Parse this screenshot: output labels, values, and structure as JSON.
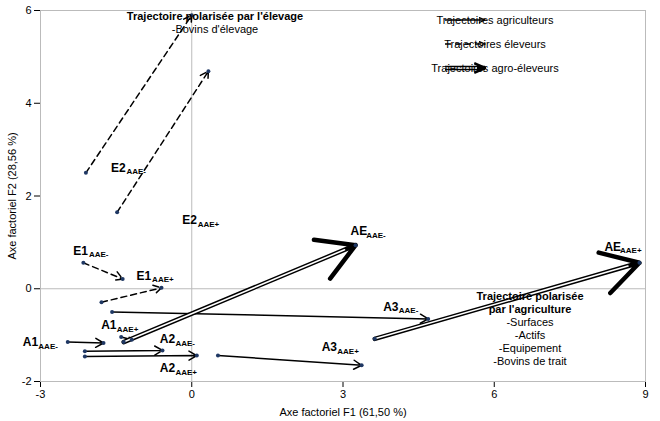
{
  "chart_data": {
    "type": "arrow",
    "x_label": "Axe factoriel F1 (61,50 %)",
    "y_label": "Axe factoriel F2 (28,56 %)",
    "xlim": [
      -3,
      9
    ],
    "ylim": [
      -2,
      6
    ],
    "xticks": [
      -3,
      0,
      3,
      6,
      9
    ],
    "yticks": [
      -2,
      0,
      2,
      4,
      6
    ],
    "grid": false,
    "marker": "dot",
    "legend": "top-right",
    "series": [
      {
        "name": "Trajectoires agriculteurs",
        "color": "#000000",
        "line_style": "solid",
        "values": [
          {
            "name": "A1",
            "subscript": "AAE-",
            "x": [
              -2.46,
              -1.75
            ],
            "y": [
              -1.15,
              -1.17
            ]
          },
          {
            "name": "A1",
            "subscript": "AAE+",
            "x": [
              -1.4,
              -1.19
            ],
            "y": [
              -1.04,
              -1.1
            ]
          },
          {
            "name": "A2",
            "subscript": "AAE-",
            "x": [
              -2.12,
              -0.58
            ],
            "y": [
              -1.35,
              -1.33
            ]
          },
          {
            "name": "A2",
            "subscript": "AAE+",
            "x": [
              -2.12,
              0.1
            ],
            "y": [
              -1.46,
              -1.44
            ]
          },
          {
            "name": "A3",
            "subscript": "AAE-",
            "x": [
              -1.58,
              4.69
            ],
            "y": [
              -0.5,
              -0.65
            ]
          },
          {
            "name": "A3",
            "subscript": "AAE+",
            "x": [
              0.52,
              3.37
            ],
            "y": [
              -1.44,
              -1.65
            ]
          }
        ]
      },
      {
        "name": "Trajectoires éleveurs",
        "color": "#000000",
        "line_style": "dashed",
        "values": [
          {
            "name": "E1",
            "subscript": "AAE-",
            "x": [
              -2.15,
              -1.37
            ],
            "y": [
              0.56,
              0.21
            ]
          },
          {
            "name": "E1",
            "subscript": "AAE+",
            "x": [
              -1.79,
              -0.6
            ],
            "y": [
              -0.29,
              0.02
            ]
          },
          {
            "name": "E2",
            "subscript": "AAE-",
            "x": [
              -2.1,
              0
            ],
            "y": [
              2.5,
              5.9
            ]
          },
          {
            "name": "E2",
            "subscript": "AAE+",
            "x": [
              -1.48,
              0.33
            ],
            "y": [
              1.65,
              4.69
            ]
          }
        ]
      },
      {
        "name": "Trajectoires agro-éleveurs",
        "color": "#000000",
        "line_style": "double",
        "values": [
          {
            "name": "AE",
            "subscript": "AAE-",
            "x": [
              -1.35,
              3.25
            ],
            "y": [
              -1.15,
              0.94
            ]
          },
          {
            "name": "AE",
            "subscript": "AAE+",
            "x": [
              3.63,
              8.88
            ],
            "y": [
              -1.08,
              0.56
            ]
          }
        ]
      }
    ],
    "annotations": [
      {
        "title": [
          "Trajectoire polarisée par l'élevage"
        ],
        "items": [
          "-Bovins d'élevage"
        ]
      },
      {
        "title": [
          "Trajectoire polarisée",
          "par l'agriculture"
        ],
        "items": [
          "-Surfaces",
          "-Actifs",
          "-Equipement",
          "-Bovins de trait"
        ]
      }
    ]
  }
}
